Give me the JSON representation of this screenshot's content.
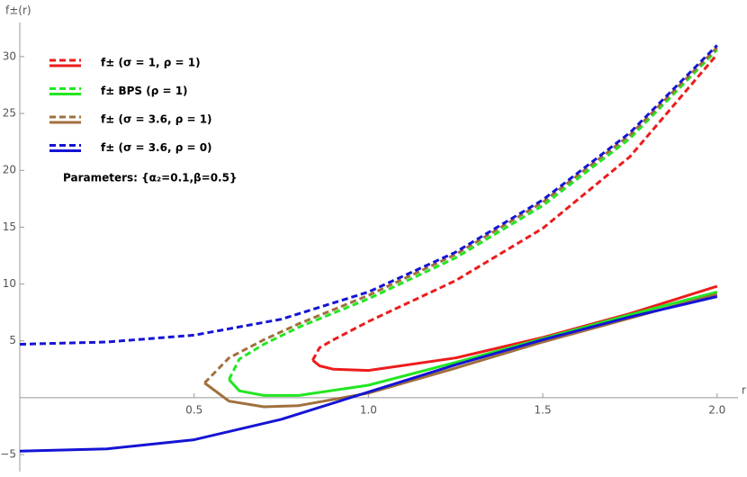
{
  "chart_data": {
    "type": "line",
    "x_label": "r",
    "y_label": "f±(r)",
    "annotation": "Parameters: {α₂=0.1,β=0.5}",
    "xlim": [
      0,
      2.06
    ],
    "ylim": [
      -6.5,
      33
    ],
    "xticks": [
      0.5,
      {
        "value": 1,
        "label": "1.0"
      },
      1.5,
      {
        "value": 2,
        "label": "2.0"
      }
    ],
    "yticks": [
      {
        "value": -5,
        "label": "−5"
      },
      5,
      10,
      15,
      20,
      25,
      30
    ],
    "grid": false,
    "series": [
      {
        "name": "f± (σ = 1, ρ = 1)",
        "color": "#ec1c1c",
        "branches": [
          {
            "style": "dashed",
            "x": [
              0.84,
              0.86,
              0.9,
              1.0,
              1.25,
              1.5,
              1.75,
              2.0
            ],
            "values": [
              3.3,
              4.4,
              5.1,
              6.7,
              10.3,
              14.9,
              21.2,
              30.2
            ]
          },
          {
            "style": "solid",
            "x": [
              0.84,
              0.86,
              0.9,
              1.0,
              1.25,
              1.5,
              1.75,
              2.0
            ],
            "values": [
              3.3,
              2.8,
              2.5,
              2.4,
              3.5,
              5.3,
              7.4,
              9.8
            ]
          }
        ]
      },
      {
        "name": "f± BPS (ρ = 1)",
        "color": "#22e622",
        "branches": [
          {
            "style": "dashed",
            "x": [
              0.6,
              0.63,
              0.7,
              0.8,
              1.0,
              1.25,
              1.5,
              1.75,
              2.0
            ],
            "values": [
              1.6,
              3.4,
              4.7,
              6.2,
              8.7,
              12.3,
              16.9,
              22.8,
              30.6
            ]
          },
          {
            "style": "solid",
            "x": [
              0.6,
              0.63,
              0.7,
              0.8,
              1.0,
              1.25,
              1.5,
              1.75,
              2.0
            ],
            "values": [
              1.6,
              0.6,
              0.2,
              0.2,
              1.1,
              3.1,
              5.2,
              7.3,
              9.3
            ]
          }
        ]
      },
      {
        "name": "f± (σ = 3.6, ρ = 1)",
        "color": "#a0703c",
        "branches": [
          {
            "style": "dashed",
            "x": [
              0.53,
              0.6,
              0.7,
              0.8,
              1.0,
              1.25,
              1.5,
              1.75,
              2.0
            ],
            "values": [
              1.3,
              3.5,
              5.1,
              6.5,
              9.0,
              12.6,
              17.2,
              23.1,
              30.8
            ]
          },
          {
            "style": "solid",
            "x": [
              0.53,
              0.6,
              0.7,
              0.8,
              1.0,
              1.25,
              1.5,
              1.75,
              2.0
            ],
            "values": [
              1.3,
              -0.3,
              -0.8,
              -0.7,
              0.4,
              2.6,
              4.9,
              7.0,
              9.1
            ]
          }
        ]
      },
      {
        "name": "f± (σ = 3.6, ρ = 0)",
        "color": "#1414d4",
        "branches": [
          {
            "style": "dashed",
            "x": [
              0,
              0.25,
              0.5,
              0.75,
              1.0,
              1.25,
              1.5,
              1.75,
              2.0
            ],
            "values": [
              4.7,
              4.9,
              5.5,
              6.9,
              9.3,
              12.8,
              17.4,
              23.3,
              31.0
            ]
          },
          {
            "style": "solid",
            "x": [
              0,
              0.25,
              0.5,
              0.75,
              1.0,
              1.25,
              1.5,
              1.75,
              2.0
            ],
            "values": [
              -4.7,
              -4.5,
              -3.7,
              -1.9,
              0.5,
              2.9,
              5.1,
              7.1,
              8.9
            ]
          }
        ]
      }
    ]
  }
}
